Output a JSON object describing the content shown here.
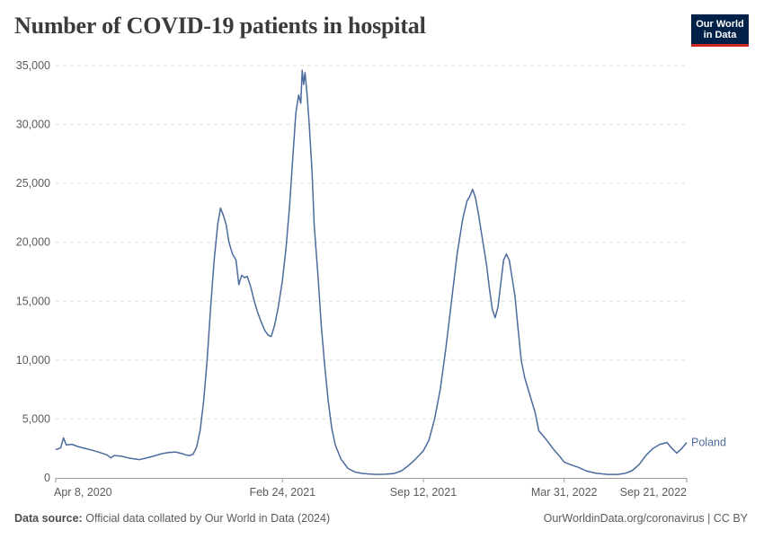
{
  "title": "Number of COVID-19 patients in hospital",
  "logo": {
    "line1": "Our World",
    "line2": "in Data"
  },
  "footer": {
    "source_label": "Data source:",
    "source_text": "Official data collated by Our World in Data (2024)",
    "url": "OurWorldinData.org/coronavirus | CC BY"
  },
  "colors": {
    "series": "#4c6a9c",
    "grid": "#dddddd",
    "logo_bg": "#002147",
    "logo_bar": "#ce261e"
  },
  "chart_data": {
    "type": "line",
    "title": "Number of COVID-19 patients in hospital",
    "xlabel": "",
    "ylabel": "",
    "ylim": [
      0,
      35000
    ],
    "yticks": [
      0,
      5000,
      10000,
      15000,
      20000,
      25000,
      30000,
      35000
    ],
    "ytick_labels": [
      "0",
      "5,000",
      "10,000",
      "15,000",
      "20,000",
      "25,000",
      "30,000",
      "35,000"
    ],
    "x_start": "2020-04-08",
    "x_end": "2022-09-21",
    "xticks": [
      {
        "date": "2020-04-08",
        "label": "Apr 8, 2020"
      },
      {
        "date": "2021-02-24",
        "label": "Feb 24, 2021"
      },
      {
        "date": "2021-09-12",
        "label": "Sep 12, 2021"
      },
      {
        "date": "2022-03-31",
        "label": "Mar 31, 2022"
      },
      {
        "date": "2022-09-21",
        "label": "Sep 21, 2022"
      }
    ],
    "series": [
      {
        "name": "Poland",
        "points": [
          [
            "2020-04-08",
            2400
          ],
          [
            "2020-04-15",
            2550
          ],
          [
            "2020-04-19",
            3400
          ],
          [
            "2020-04-23",
            2800
          ],
          [
            "2020-05-01",
            2850
          ],
          [
            "2020-05-10",
            2650
          ],
          [
            "2020-05-20",
            2500
          ],
          [
            "2020-05-30",
            2350
          ],
          [
            "2020-06-10",
            2150
          ],
          [
            "2020-06-20",
            1950
          ],
          [
            "2020-06-25",
            1700
          ],
          [
            "2020-06-30",
            1900
          ],
          [
            "2020-07-10",
            1850
          ],
          [
            "2020-07-20",
            1700
          ],
          [
            "2020-07-30",
            1600
          ],
          [
            "2020-08-05",
            1550
          ],
          [
            "2020-08-15",
            1700
          ],
          [
            "2020-08-25",
            1850
          ],
          [
            "2020-09-05",
            2050
          ],
          [
            "2020-09-15",
            2150
          ],
          [
            "2020-09-25",
            2200
          ],
          [
            "2020-10-05",
            2050
          ],
          [
            "2020-10-10",
            1950
          ],
          [
            "2020-10-15",
            1900
          ],
          [
            "2020-10-20",
            2000
          ],
          [
            "2020-10-25",
            2600
          ],
          [
            "2020-10-30",
            4000
          ],
          [
            "2020-11-04",
            6500
          ],
          [
            "2020-11-09",
            10000
          ],
          [
            "2020-11-14",
            14500
          ],
          [
            "2020-11-19",
            18500
          ],
          [
            "2020-11-24",
            21500
          ],
          [
            "2020-11-28",
            22900
          ],
          [
            "2020-12-02",
            22300
          ],
          [
            "2020-12-06",
            21500
          ],
          [
            "2020-12-10",
            20000
          ],
          [
            "2020-12-15",
            19000
          ],
          [
            "2020-12-20",
            18500
          ],
          [
            "2020-12-24",
            16400
          ],
          [
            "2020-12-28",
            17200
          ],
          [
            "2021-01-01",
            17000
          ],
          [
            "2021-01-05",
            17100
          ],
          [
            "2021-01-10",
            16200
          ],
          [
            "2021-01-15",
            15000
          ],
          [
            "2021-01-20",
            14000
          ],
          [
            "2021-01-25",
            13200
          ],
          [
            "2021-01-30",
            12500
          ],
          [
            "2021-02-04",
            12100
          ],
          [
            "2021-02-08",
            12000
          ],
          [
            "2021-02-13",
            13000
          ],
          [
            "2021-02-18",
            14500
          ],
          [
            "2021-02-24",
            16800
          ],
          [
            "2021-03-01",
            19500
          ],
          [
            "2021-03-06",
            23000
          ],
          [
            "2021-03-11",
            27500
          ],
          [
            "2021-03-15",
            31000
          ],
          [
            "2021-03-19",
            32500
          ],
          [
            "2021-03-22",
            31800
          ],
          [
            "2021-03-24",
            34600
          ],
          [
            "2021-03-26",
            33400
          ],
          [
            "2021-03-28",
            34400
          ],
          [
            "2021-03-31",
            32500
          ],
          [
            "2021-04-03",
            30000
          ],
          [
            "2021-04-07",
            26000
          ],
          [
            "2021-04-10",
            21500
          ],
          [
            "2021-04-15",
            17500
          ],
          [
            "2021-04-20",
            13000
          ],
          [
            "2021-04-25",
            9500
          ],
          [
            "2021-04-30",
            6500
          ],
          [
            "2021-05-05",
            4200
          ],
          [
            "2021-05-10",
            2800
          ],
          [
            "2021-05-18",
            1600
          ],
          [
            "2021-05-28",
            800
          ],
          [
            "2021-06-07",
            500
          ],
          [
            "2021-06-17",
            380
          ],
          [
            "2021-06-27",
            330
          ],
          [
            "2021-07-07",
            300
          ],
          [
            "2021-07-20",
            310
          ],
          [
            "2021-08-01",
            370
          ],
          [
            "2021-08-12",
            600
          ],
          [
            "2021-08-22",
            1050
          ],
          [
            "2021-09-01",
            1600
          ],
          [
            "2021-09-12",
            2300
          ],
          [
            "2021-09-20",
            3200
          ],
          [
            "2021-09-28",
            5000
          ],
          [
            "2021-10-06",
            7500
          ],
          [
            "2021-10-14",
            11000
          ],
          [
            "2021-10-22",
            15000
          ],
          [
            "2021-10-30",
            19000
          ],
          [
            "2021-11-07",
            22000
          ],
          [
            "2021-11-13",
            23500
          ],
          [
            "2021-11-17",
            23900
          ],
          [
            "2021-11-21",
            24500
          ],
          [
            "2021-11-25",
            23800
          ],
          [
            "2021-11-29",
            22500
          ],
          [
            "2021-12-03",
            21000
          ],
          [
            "2021-12-07",
            19500
          ],
          [
            "2021-12-11",
            18000
          ],
          [
            "2021-12-15",
            16000
          ],
          [
            "2021-12-19",
            14300
          ],
          [
            "2021-12-23",
            13600
          ],
          [
            "2021-12-27",
            14500
          ],
          [
            "2021-12-31",
            16500
          ],
          [
            "2022-01-04",
            18500
          ],
          [
            "2022-01-08",
            19000
          ],
          [
            "2022-01-12",
            18500
          ],
          [
            "2022-01-16",
            17000
          ],
          [
            "2022-01-20",
            15500
          ],
          [
            "2022-01-24",
            13000
          ],
          [
            "2022-01-29",
            10000
          ],
          [
            "2022-02-03",
            8500
          ],
          [
            "2022-02-08",
            7500
          ],
          [
            "2022-02-13",
            6500
          ],
          [
            "2022-02-18",
            5500
          ],
          [
            "2022-02-23",
            4000
          ],
          [
            "2022-03-05",
            3300
          ],
          [
            "2022-03-15",
            2500
          ],
          [
            "2022-03-25",
            1800
          ],
          [
            "2022-03-31",
            1350
          ],
          [
            "2022-04-10",
            1100
          ],
          [
            "2022-04-20",
            900
          ],
          [
            "2022-05-01",
            600
          ],
          [
            "2022-05-15",
            400
          ],
          [
            "2022-06-01",
            300
          ],
          [
            "2022-06-15",
            300
          ],
          [
            "2022-06-25",
            380
          ],
          [
            "2022-07-05",
            600
          ],
          [
            "2022-07-15",
            1100
          ],
          [
            "2022-07-25",
            1900
          ],
          [
            "2022-08-04",
            2500
          ],
          [
            "2022-08-14",
            2850
          ],
          [
            "2022-08-24",
            3000
          ],
          [
            "2022-08-31",
            2500
          ],
          [
            "2022-09-07",
            2100
          ],
          [
            "2022-09-14",
            2500
          ],
          [
            "2022-09-21",
            3000
          ]
        ]
      }
    ]
  }
}
